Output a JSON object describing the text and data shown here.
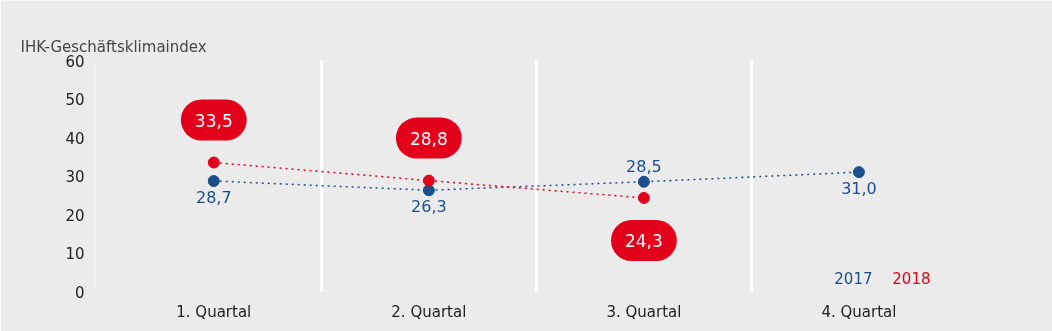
{
  "chart_data": {
    "type": "line",
    "title": "IHK-Geschäftsklimaindex",
    "categories": [
      "1. Quartal",
      "2. Quartal",
      "3. Quartal",
      "4. Quartal"
    ],
    "series": [
      {
        "name": "2017",
        "color": "#1a4f8a",
        "values": [
          28.7,
          26.3,
          28.5,
          31.0
        ],
        "value_labels": [
          "28,7",
          "26,3",
          "28,5",
          "31,0"
        ]
      },
      {
        "name": "2018",
        "color": "#e2001a",
        "values": [
          33.5,
          28.8,
          24.3,
          null
        ],
        "value_labels": [
          "33,5",
          "28,8",
          "24,3",
          null
        ]
      }
    ],
    "ylim": [
      0,
      60
    ],
    "yticks": [
      0,
      10,
      20,
      30,
      40,
      50,
      60
    ],
    "grid": "x",
    "legend": "bottom right",
    "marker": "circle",
    "line_style": "dotted"
  }
}
